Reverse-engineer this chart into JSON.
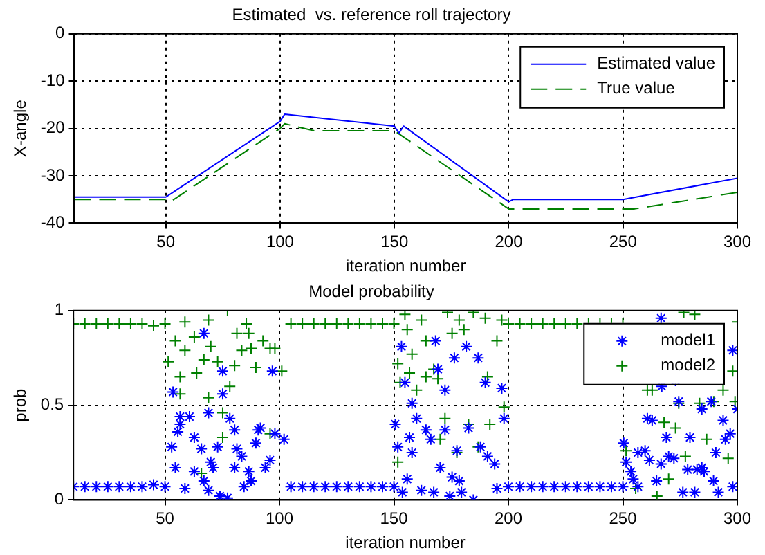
{
  "chart_data": [
    {
      "type": "line",
      "title": "Estimated  vs. reference roll trajectory",
      "xlabel": "iteration number",
      "ylabel": "X-angle",
      "xlim": [
        10,
        300
      ],
      "xticks": [
        50,
        100,
        150,
        200,
        250,
        300
      ],
      "ylim": [
        -40,
        0
      ],
      "yticks": [
        -40,
        -30,
        -20,
        -10,
        0
      ],
      "grid": true,
      "legend": "top right",
      "series": [
        {
          "name": "Estimated value",
          "color": "#0000ff",
          "line_style": "solid",
          "x": [
            10,
            50,
            100,
            102,
            150,
            152,
            154,
            200,
            202,
            250,
            300
          ],
          "values": [
            -34.5,
            -34.5,
            -18.5,
            -17,
            -19.5,
            -21,
            -19.5,
            -35.5,
            -35,
            -35,
            -30.5
          ]
        },
        {
          "name": "True value",
          "color": "#008000",
          "line_style": "dashed",
          "x": [
            10,
            50,
            52,
            100,
            102,
            115,
            150,
            200,
            255,
            300
          ],
          "values": [
            -35,
            -35,
            -35.5,
            -20,
            -19,
            -20.5,
            -20.5,
            -37,
            -37,
            -33.5
          ]
        }
      ]
    },
    {
      "type": "scatter",
      "title": "Model probability",
      "xlabel": "iteration number",
      "ylabel": "prob",
      "xlim": [
        10,
        300
      ],
      "xticks": [
        50,
        100,
        150,
        200,
        250,
        300
      ],
      "ylim": [
        0,
        1
      ],
      "yticks": [
        0,
        0.5,
        1
      ],
      "grid": true,
      "legend": "top right",
      "series": [
        {
          "name": "model1",
          "color": "#0000ff",
          "x": [
            10,
            15,
            20,
            25,
            30,
            35,
            40,
            45,
            50,
            53.5,
            56.6,
            56.6,
            55.6,
            52.9,
            60.7,
            62.8,
            65.9,
            54.5,
            58.7,
            62.8,
            67,
            69,
            70,
            69,
            67,
            71,
            73,
            74,
            75.2,
            75.2,
            77.3,
            78.3,
            80.4,
            80.4,
            81.4,
            83.5,
            84.5,
            86.6,
            87.6,
            89.7,
            90.7,
            91.7,
            93.8,
            95.9,
            96.9,
            98,
            102,
            105,
            110,
            115,
            120,
            125,
            130,
            135,
            140,
            145,
            150,
            153.3,
            154.8,
            157.9,
            159.9,
            150.6,
            156.8,
            151.7,
            157.9,
            155.8,
            153.7,
            162,
            164,
            166.1,
            167.4,
            168.2,
            169.2,
            170.2,
            172.3,
            172.3,
            174.4,
            175.4,
            176.4,
            177.5,
            178.5,
            179.5,
            181.6,
            182.6,
            184.7,
            186.8,
            187.8,
            189.9,
            190.9,
            194,
            195,
            197.1,
            198.1,
            200,
            205,
            210,
            215,
            220,
            225,
            230,
            235,
            240,
            245,
            250,
            250.4,
            251.4,
            253.5,
            254.5,
            256.6,
            256.6,
            259.7,
            260.7,
            262.8,
            261.6,
            264.7,
            266.7,
            267,
            266.7,
            269,
            270,
            272.3,
            273,
            274.4,
            276.2,
            278.3,
            279.3,
            281.4,
            282.4,
            284.5,
            285.5,
            284.5,
            288.6,
            289.6,
            290.6,
            291.7,
            293.8,
            294.8,
            296.9,
            298,
            298,
            300
          ],
          "values": [
            0.07,
            0.07,
            0.07,
            0.07,
            0.07,
            0.07,
            0.07,
            0.08,
            0.07,
            0.57,
            0.44,
            0.4,
            0.36,
            0.28,
            0.44,
            0.33,
            0.27,
            0.17,
            0.06,
            0.15,
            0.1,
            0.05,
            0.2,
            0.46,
            0.88,
            0.17,
            0.28,
            0.02,
            0.56,
            0.68,
            0.01,
            0.43,
            0.37,
            0.17,
            0.27,
            0.23,
            0.07,
            0.15,
            0.1,
            0.3,
            0.37,
            0.38,
            0.17,
            0.21,
            0.68,
            0.35,
            0.32,
            0.07,
            0.07,
            0.07,
            0.07,
            0.07,
            0.07,
            0.07,
            0.07,
            0.07,
            0.07,
            0.81,
            0.62,
            0.51,
            0.43,
            0.4,
            0.33,
            0.28,
            0.25,
            0.11,
            0.04,
            0.05,
            0.37,
            0.32,
            0.04,
            0.84,
            0.69,
            0.17,
            0.58,
            0.37,
            0.02,
            0.12,
            0.75,
            0.26,
            0.1,
            0.04,
            0.81,
            0.38,
            0,
            0.75,
            0.28,
            0.62,
            0.23,
            0.19,
            0.06,
            0.59,
            0.43,
            0.07,
            0.07,
            0.07,
            0.07,
            0.07,
            0.07,
            0.07,
            0.07,
            0.07,
            0.07,
            0.07,
            0.3,
            0.2,
            0.15,
            0.11,
            0.07,
            0.25,
            0.26,
            0.43,
            0.42,
            0.21,
            0.1,
            0.96,
            0.6,
            0.19,
            0.33,
            0.23,
            0.22,
            0.63,
            0.52,
            0.04,
            0.16,
            0.33,
            0.04,
            0.16,
            0.17,
            0.15,
            0.48,
            0.52,
            0.1,
            0.25,
            0.04,
            0.42,
            0.32,
            0.35,
            0.07,
            0.79,
            0.48
          ]
        },
        {
          "name": "model2",
          "color": "#008000",
          "marker": "cross",
          "x": [
            10,
            15,
            20,
            25,
            30,
            35,
            40,
            45,
            50,
            51.4,
            56.6,
            56.6,
            58.7,
            54.5,
            58.7,
            63.8,
            62.8,
            67,
            69,
            70,
            69,
            73,
            75.2,
            75.2,
            77.3,
            78.3,
            80.4,
            81.4,
            83.5,
            85.5,
            86.6,
            87.6,
            89.7,
            92.8,
            95.9,
            98,
            101,
            65.9,
            95.9,
            105,
            110,
            115,
            120,
            125,
            130,
            135,
            140,
            145,
            150,
            151.7,
            152.7,
            154.8,
            155.8,
            157.9,
            156.8,
            159.9,
            162,
            164,
            164,
            167.4,
            169.2,
            170.2,
            172.3,
            173.4,
            175.4,
            177.5,
            178.5,
            180.6,
            182.6,
            184.7,
            186.8,
            189.9,
            190.9,
            191.9,
            195,
            197.1,
            198.1,
            151.7,
            200,
            205,
            210,
            215,
            220,
            225,
            230,
            235,
            240,
            245,
            250,
            251.4,
            255.6,
            260.7,
            262.8,
            264.9,
            268,
            270,
            273,
            274.4,
            276.6,
            277.3,
            281.4,
            283.5,
            286.6,
            289.7,
            293.8,
            296,
            299,
            298,
            300
          ],
          "values": [
            0.93,
            0.93,
            0.93,
            0.93,
            0.93,
            0.93,
            0.93,
            0.92,
            0.93,
            0.73,
            0.65,
            0.56,
            0.94,
            0.84,
            0.79,
            0.67,
            0.86,
            0.74,
            0.95,
            0.81,
            0.54,
            0.73,
            0.46,
            0.33,
            1,
            0.6,
            0.71,
            0.88,
            0.79,
            0.93,
            0.88,
            0.8,
            0.7,
            0.84,
            0.8,
            0.8,
            0.68,
            0.14,
            0.35,
            0.93,
            0.93,
            0.93,
            0.93,
            0.93,
            0.93,
            0.93,
            0.93,
            0.93,
            0.93,
            0.72,
            0.62,
            0.98,
            0.9,
            0.77,
            0.67,
            0.58,
            0.95,
            0.84,
            0.65,
            0.69,
            0.64,
            0.32,
            0.43,
            0.99,
            0.88,
            0.25,
            0.95,
            0.9,
            0.4,
            0.99,
            0.28,
            0.96,
            0.65,
            0.4,
            0.84,
            0.95,
            0.49,
            0.2,
            0.93,
            0.93,
            0.93,
            0.93,
            0.93,
            0.93,
            0.93,
            0.93,
            0.93,
            0.93,
            0.93,
            0.26,
            0.06,
            0.58,
            0.58,
            0.02,
            0.41,
            0.11,
            0.38,
            0.51,
            0.99,
            0.23,
            0.98,
            0.51,
            0.32,
            0.52,
            0.58,
            0.22,
            0.52,
            0.68,
            0.94
          ]
        }
      ]
    }
  ]
}
